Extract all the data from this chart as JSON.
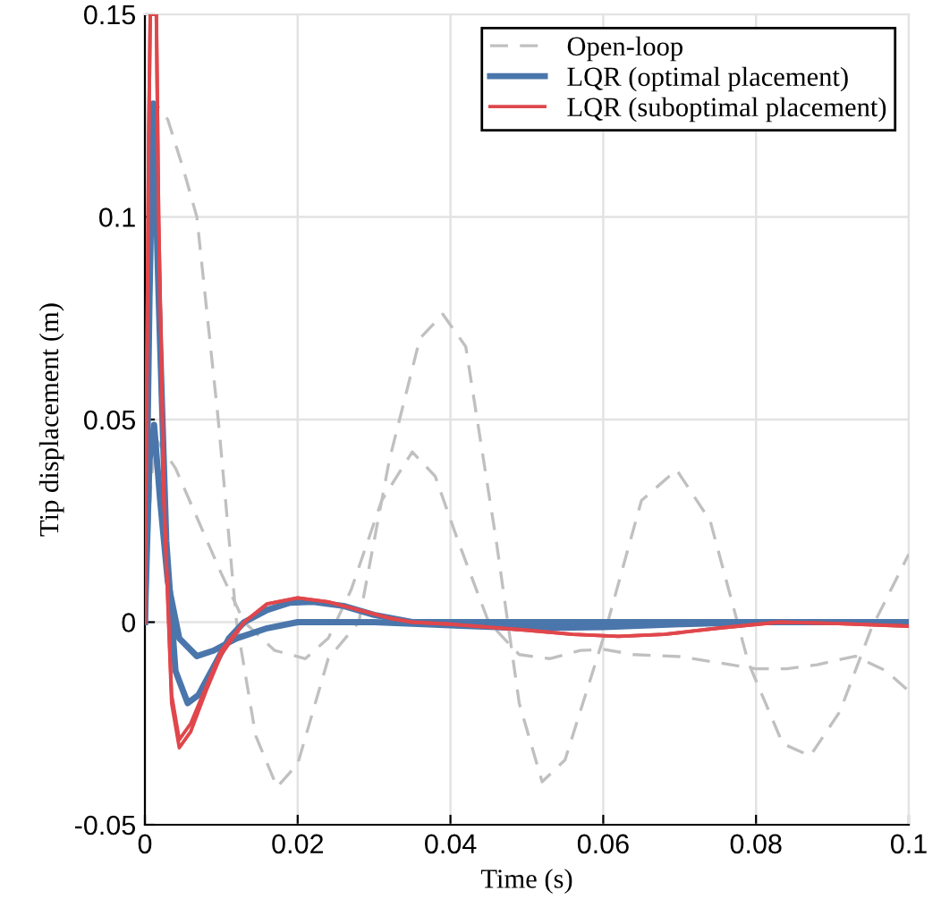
{
  "chart_data": {
    "type": "line",
    "xlabel": "Time (s)",
    "ylabel": "Tip displacement (m)",
    "xlim": [
      0,
      0.1
    ],
    "ylim": [
      -0.05,
      0.15
    ],
    "xticks": [
      0,
      0.02,
      0.04,
      0.06,
      0.08,
      0.1
    ],
    "yticks": [
      -0.05,
      0,
      0.05,
      0.1,
      0.15
    ],
    "grid": true,
    "legend": "top right",
    "series": [
      {
        "name": "Open-loop",
        "color": "#c0c0c0",
        "line_style": "dashed",
        "x": [
          0,
          0.0008,
          0.0014,
          0.003,
          0.005,
          0.0068,
          0.0096,
          0.012,
          0.0145,
          0.0173,
          0.02,
          0.024,
          0.028,
          0.032,
          0.036,
          0.039,
          0.042,
          0.046,
          0.049,
          0.052,
          0.055,
          0.06,
          0.065,
          0.0696,
          0.074,
          0.079,
          0.0835,
          0.0871,
          0.091,
          0.095,
          0.1
        ],
        "values": [
          0,
          0.11,
          0.128,
          0.124,
          0.112,
          0.1,
          0.05,
          0.0,
          -0.028,
          -0.0407,
          -0.035,
          -0.009,
          0.0,
          0.04,
          0.07,
          0.076,
          0.068,
          0.02,
          -0.02,
          -0.0394,
          -0.034,
          -0.004,
          0.03,
          0.0376,
          0.025,
          -0.01,
          -0.03,
          -0.033,
          -0.022,
          -0.002,
          0.0168
        ]
      },
      {
        "color": "#c0c0c0",
        "line_style": "dashed",
        "x": [
          0,
          0.0008,
          0.0015,
          0.004,
          0.007,
          0.01,
          0.013,
          0.017,
          0.021,
          0.024,
          0.027,
          0.031,
          0.035,
          0.038,
          0.041,
          0.045,
          0.049,
          0.053,
          0.057,
          0.06,
          0.064,
          0.07,
          0.075,
          0.08,
          0.084,
          0.088,
          0.093,
          0.097,
          0.1
        ],
        "values": [
          0,
          0.035,
          0.045,
          0.038,
          0.025,
          0.012,
          0.0,
          -0.007,
          -0.009,
          -0.004,
          0.008,
          0.03,
          0.042,
          0.036,
          0.02,
          0.0,
          -0.008,
          -0.009,
          -0.007,
          -0.0067,
          -0.008,
          -0.0085,
          -0.01,
          -0.0115,
          -0.0115,
          -0.0105,
          -0.0084,
          -0.012,
          -0.017
        ]
      },
      {
        "name": "LQR (optimal placement)",
        "color": "#4a76ab",
        "x": [
          0,
          0.0006,
          0.0011,
          0.0018,
          0.0028,
          0.004,
          0.0056,
          0.007,
          0.009,
          0.011,
          0.013,
          0.016,
          0.019,
          0.022,
          0.026,
          0.03,
          0.035,
          0.04,
          0.05,
          0.06,
          0.07,
          0.08,
          0.09,
          0.1
        ],
        "values": [
          0,
          0.08,
          0.128,
          0.08,
          0.02,
          -0.012,
          -0.02,
          -0.018,
          -0.011,
          -0.004,
          0.0,
          0.003,
          0.0048,
          0.005,
          0.004,
          0.0018,
          0.0,
          0.0,
          0.0,
          0.0,
          0.0,
          0.0,
          0.0,
          0.0
        ]
      },
      {
        "color": "#4a76ab",
        "x": [
          0,
          0.0006,
          0.0012,
          0.002,
          0.003,
          0.0045,
          0.0068,
          0.009,
          0.012,
          0.016,
          0.02,
          0.025,
          0.03,
          0.04,
          0.05,
          0.06,
          0.07,
          0.08,
          0.09,
          0.1
        ],
        "values": [
          0,
          0.04,
          0.0487,
          0.03,
          0.01,
          -0.004,
          -0.0084,
          -0.007,
          -0.004,
          -0.0015,
          0.0,
          0.0,
          0.0,
          -0.0008,
          -0.0015,
          -0.0012,
          -0.0005,
          0.0,
          0.0,
          0.0
        ]
      },
      {
        "name": "LQR (suboptimal placement)",
        "color": "#e0474c",
        "x": [
          0,
          0.0005,
          0.0007,
          0.0015,
          0.0018,
          0.0025,
          0.0035,
          0.0045,
          0.006,
          0.008,
          0.01,
          0.013,
          0.016,
          0.02,
          0.024,
          0.028,
          0.032,
          0.035,
          0.04,
          0.05,
          0.056,
          0.062,
          0.068,
          0.075,
          0.083,
          0.09,
          0.1
        ],
        "values": [
          0,
          0.12,
          0.15,
          0.15,
          0.1,
          0.03,
          -0.02,
          -0.031,
          -0.027,
          -0.017,
          -0.008,
          0.0,
          0.0045,
          0.006,
          0.005,
          0.003,
          0.001,
          0.0,
          -0.0005,
          -0.002,
          -0.003,
          -0.0035,
          -0.003,
          -0.0015,
          0.0,
          -0.0003,
          -0.001
        ]
      },
      {
        "color": "#e0474c",
        "x": [
          0,
          0.0005,
          0.0007,
          0.0015,
          0.0018,
          0.0025,
          0.0035,
          0.0045,
          0.006,
          0.008,
          0.01,
          0.013,
          0.016,
          0.02,
          0.024,
          0.028,
          0.032,
          0.035,
          0.04,
          0.05,
          0.056,
          0.062,
          0.068,
          0.075,
          0.083,
          0.09,
          0.1
        ],
        "values": [
          0,
          0.12,
          0.15,
          0.15,
          0.1,
          0.03,
          -0.018,
          -0.029,
          -0.025,
          -0.016,
          -0.007,
          0.0,
          0.0045,
          0.006,
          0.005,
          0.003,
          0.001,
          0.0,
          -0.0005,
          -0.002,
          -0.003,
          -0.0035,
          -0.003,
          -0.0015,
          0.0,
          -0.0003,
          -0.001
        ]
      }
    ]
  }
}
